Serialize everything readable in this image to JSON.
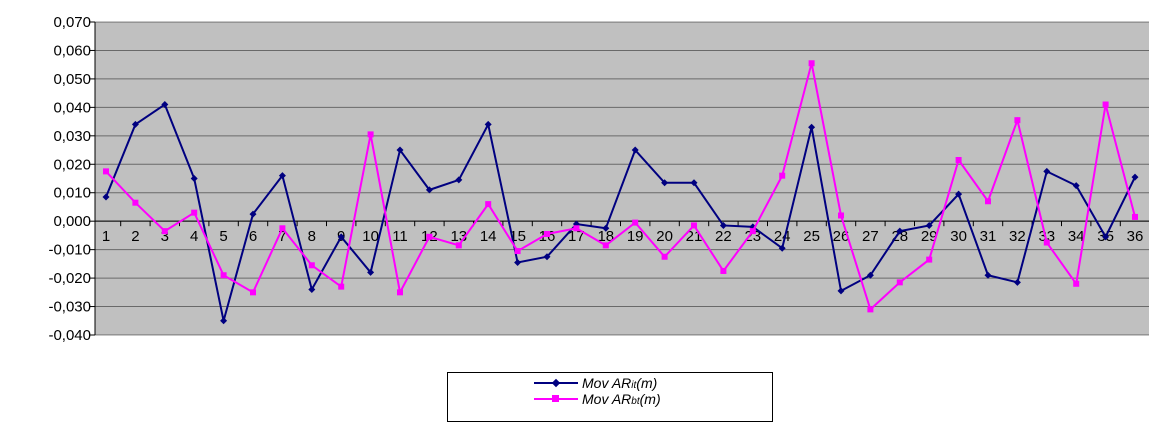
{
  "chart_data": {
    "type": "line",
    "title": "",
    "xlabel": "",
    "ylabel": "",
    "x": [
      1,
      2,
      3,
      4,
      5,
      6,
      7,
      8,
      9,
      10,
      11,
      12,
      13,
      14,
      15,
      16,
      17,
      18,
      19,
      20,
      21,
      22,
      23,
      24,
      25,
      26,
      27,
      28,
      29,
      30,
      31,
      32,
      33,
      34,
      35,
      36
    ],
    "x_tick_labels": [
      "1",
      "2",
      "3",
      "4",
      "5",
      "6",
      "7",
      "8",
      "9",
      "10",
      "11",
      "12",
      "13",
      "14",
      "15",
      "16",
      "17",
      "18",
      "19",
      "20",
      "21",
      "22",
      "23",
      "24",
      "25",
      "26",
      "27",
      "28",
      "29",
      "30",
      "31",
      "32",
      "33",
      "34",
      "35",
      "36"
    ],
    "y_tick_labels": [
      "0,070",
      "0,060",
      "0,050",
      "0,040",
      "0,030",
      "0,020",
      "0,010",
      "0,000",
      "-0,010",
      "-0,020",
      "-0,030",
      "-0,040"
    ],
    "y_ticks": [
      0.07,
      0.06,
      0.05,
      0.04,
      0.03,
      0.02,
      0.01,
      0.0,
      -0.01,
      -0.02,
      -0.03,
      -0.04
    ],
    "ylim": [
      -0.04,
      0.07
    ],
    "grid": true,
    "plot_background": "#c0c0c0",
    "legend_position": "bottom",
    "series": [
      {
        "name_main": "Mov AR",
        "name_sub": "it",
        "name_suffix": "(m)",
        "color": "#000080",
        "marker": "diamond",
        "values": [
          0.0085,
          0.034,
          0.041,
          0.015,
          -0.035,
          0.0025,
          0.016,
          -0.024,
          -0.0055,
          -0.018,
          0.025,
          0.011,
          0.0145,
          0.034,
          -0.0145,
          -0.0125,
          -0.001,
          -0.0025,
          0.025,
          0.0135,
          0.0135,
          -0.0015,
          -0.002,
          -0.0095,
          0.033,
          -0.0245,
          -0.019,
          -0.0035,
          -0.0015,
          0.0095,
          -0.019,
          -0.0215,
          0.0175,
          0.0125,
          -0.0055,
          0.0155
        ]
      },
      {
        "name_main": "Mov AR",
        "name_sub": "bt",
        "name_suffix": "(m)",
        "color": "#ff00ff",
        "marker": "square",
        "values": [
          0.0175,
          0.0065,
          -0.0035,
          0.003,
          -0.019,
          -0.025,
          -0.0025,
          -0.0155,
          -0.023,
          0.0305,
          -0.025,
          -0.0055,
          -0.0085,
          0.006,
          -0.0105,
          -0.0045,
          -0.0025,
          -0.0085,
          -0.0005,
          -0.0125,
          -0.0015,
          -0.0175,
          -0.0035,
          0.016,
          0.0555,
          0.002,
          -0.031,
          -0.0215,
          -0.0135,
          0.0215,
          0.007,
          0.0355,
          -0.0075,
          -0.022,
          0.041,
          0.0015
        ]
      }
    ]
  }
}
